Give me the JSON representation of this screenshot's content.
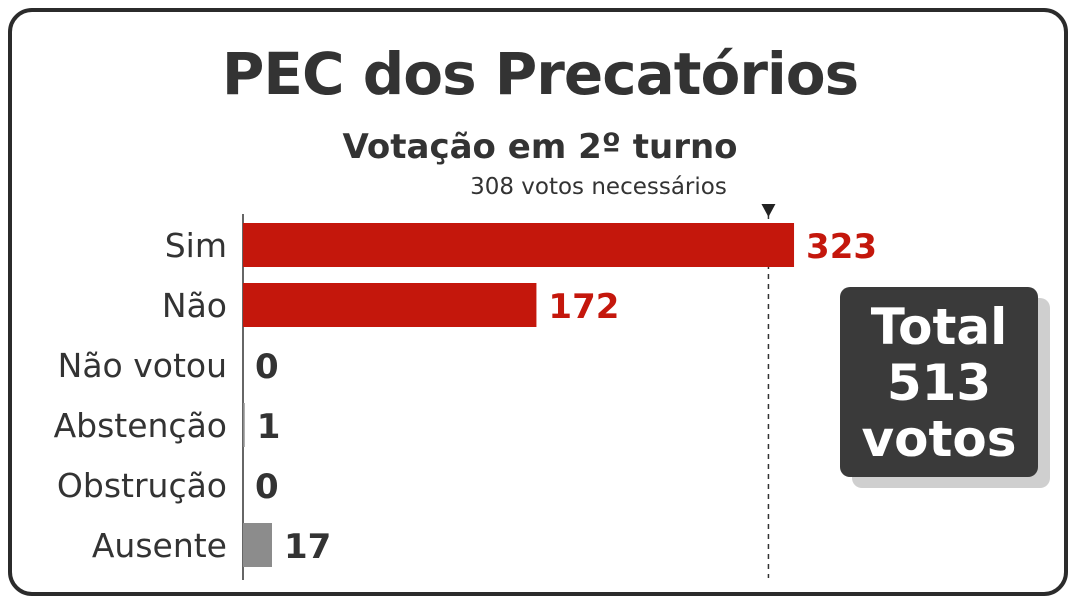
{
  "title": "PEC dos Precatórios",
  "subtitle": "Votação em 2º turno",
  "total": {
    "line1": "Total",
    "line2": "513",
    "line3": "votos"
  },
  "colors": {
    "red": "#c4170c",
    "gray": "#8c8c8c",
    "text": "#333333",
    "box": "#3a3a3a"
  },
  "chart_data": {
    "type": "bar",
    "orientation": "horizontal",
    "title": "PEC dos Precatórios",
    "subtitle": "Votação em 2º turno",
    "categories": [
      "Sim",
      "Não",
      "Não votou",
      "Abstenção",
      "Obstrução",
      "Ausente"
    ],
    "values": [
      323,
      172,
      0,
      1,
      0,
      17
    ],
    "value_labels": [
      "323",
      "172",
      "0",
      "1",
      "0",
      "17"
    ],
    "bar_colors": [
      "#c4170c",
      "#c4170c",
      "#8c8c8c",
      "#8c8c8c",
      "#8c8c8c",
      "#8c8c8c"
    ],
    "label_colors": [
      "#c4170c",
      "#c4170c",
      "#333333",
      "#333333",
      "#333333",
      "#333333"
    ],
    "threshold": {
      "value": 308,
      "label": "308 votos necessários"
    },
    "xlim": [
      0,
      350
    ],
    "grid": false,
    "legend": "none"
  }
}
